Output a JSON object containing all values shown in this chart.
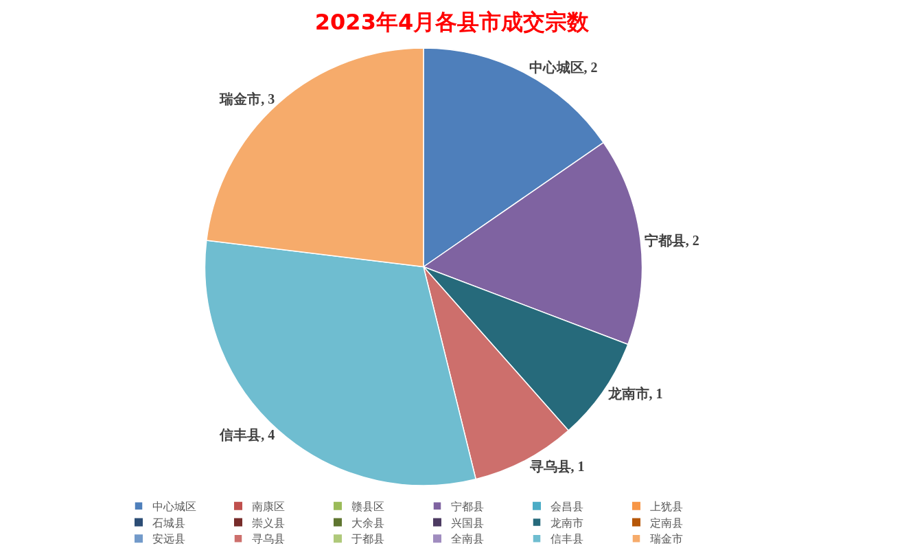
{
  "chart_data": {
    "type": "pie",
    "title": "2023年4月各县市成交宗数",
    "categories": [
      "中心城区",
      "南康区",
      "赣县区",
      "宁都县",
      "会昌县",
      "上犹县",
      "石城县",
      "崇义县",
      "大余县",
      "兴国县",
      "龙南市",
      "定南县",
      "安远县",
      "寻乌县",
      "于都县",
      "全南县",
      "信丰县",
      "瑞金市"
    ],
    "values": [
      2,
      0,
      0,
      2,
      0,
      0,
      0,
      0,
      0,
      0,
      1,
      0,
      0,
      1,
      0,
      0,
      4,
      3
    ],
    "colors": [
      "#4e7fbb",
      "#c0504d",
      "#9bbb59",
      "#7f63a1",
      "#4bacc6",
      "#f79646",
      "#2c4d75",
      "#772c2a",
      "#5f7530",
      "#4d3b62",
      "#266a7b",
      "#b65708",
      "#729aca",
      "#cd6f6c",
      "#afc97a",
      "#a08cbf",
      "#6fbdd0",
      "#f6ab6b"
    ],
    "value_labels": [
      "中心城区, 2",
      null,
      null,
      "宁都县, 2",
      null,
      null,
      null,
      null,
      null,
      null,
      "龙南市, 1",
      null,
      null,
      "寻乌县, 1",
      null,
      null,
      "信丰县, 4",
      "瑞金市, 3"
    ],
    "legend": "bottom"
  }
}
